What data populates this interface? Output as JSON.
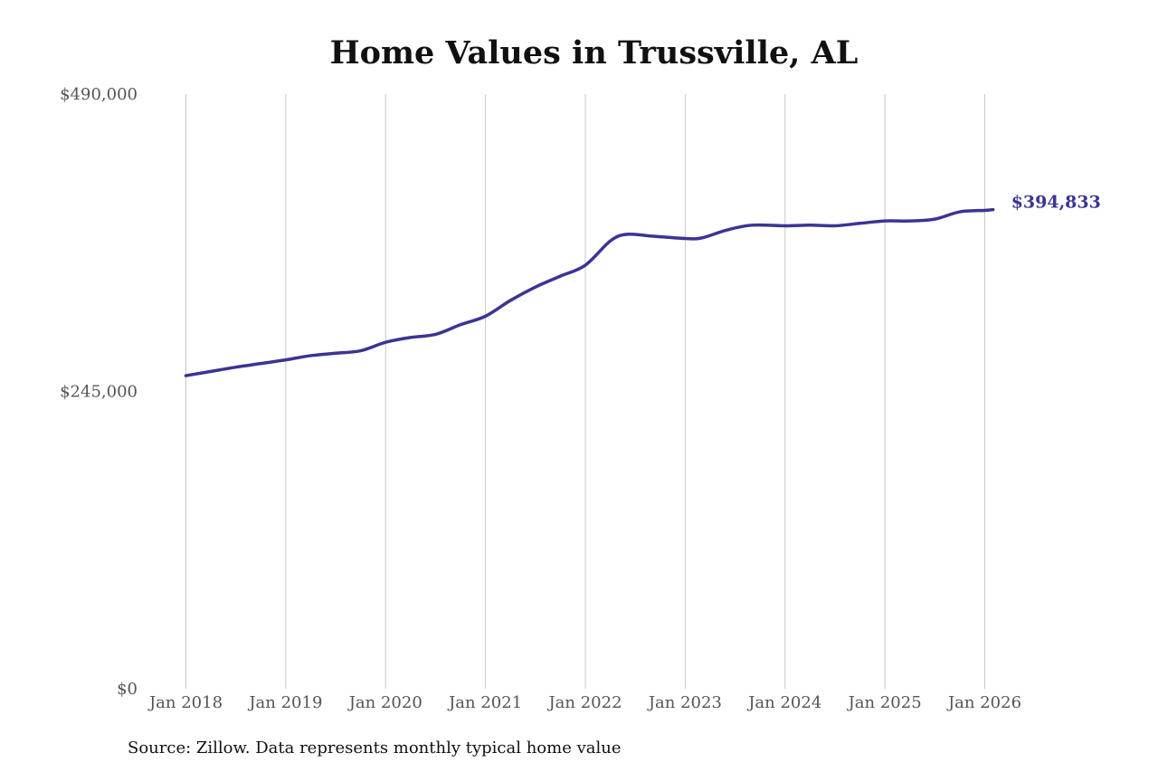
{
  "chart_data": {
    "type": "line",
    "title": "Home Values in Trussville, AL",
    "xlabel": "",
    "ylabel": "",
    "x_ticks": [
      "Jan 2018",
      "Jan 2019",
      "Jan 2020",
      "Jan 2021",
      "Jan 2022",
      "Jan 2023",
      "Jan 2024",
      "Jan 2025",
      "Jan 2026"
    ],
    "y_ticks": [
      "$0",
      "$245,000",
      "$490,000"
    ],
    "ylim": [
      0,
      490000
    ],
    "xlim": [
      "2018-01",
      "2026-01"
    ],
    "grid": "vertical",
    "line_color": "#3b3494",
    "end_label": "$394,833",
    "series": [
      {
        "x": [
          "2018-01",
          "2018-04",
          "2018-07",
          "2018-10",
          "2019-01",
          "2019-04",
          "2019-07",
          "2019-10",
          "2020-01",
          "2020-04",
          "2020-07",
          "2020-10",
          "2021-01",
          "2021-04",
          "2021-07",
          "2021-10",
          "2022-01",
          "2022-04",
          "2022-06",
          "2022-09",
          "2023-01",
          "2023-03",
          "2023-06",
          "2023-09",
          "2024-01",
          "2024-04",
          "2024-07",
          "2024-10",
          "2025-01",
          "2025-04",
          "2025-07",
          "2025-10",
          "2026-01",
          "2026-02"
        ],
        "values": [
          258000,
          261500,
          265000,
          268000,
          271000,
          274500,
          276500,
          278500,
          285500,
          289500,
          292000,
          300000,
          307000,
          320000,
          331000,
          340000,
          349000,
          369000,
          374500,
          373000,
          371000,
          371500,
          378000,
          382000,
          381500,
          382000,
          381500,
          383500,
          385500,
          385500,
          387000,
          393000,
          394200,
          394833
        ]
      }
    ]
  },
  "source_note": "Source: Zillow. Data represents monthly typical home value"
}
